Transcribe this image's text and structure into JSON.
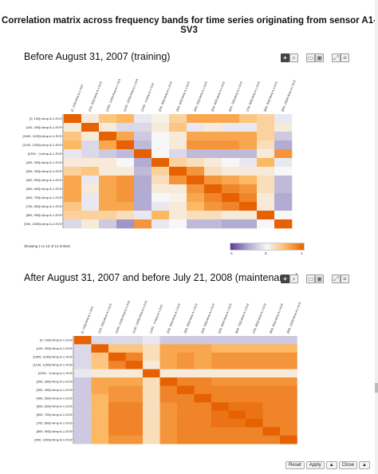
{
  "page": {
    "title": "Correlation matrix across frequency bands for time series originating from sensor A1- SV3"
  },
  "panels": [
    {
      "title": "Before August 31, 2007 (training)",
      "showing": "Showing 1 to 13 of 13 entries"
    },
    {
      "title": "After August 31, 2007 and before July 21, 2008 (maintenance)",
      "showing": ""
    }
  ],
  "toolbar": {
    "add_icon": "plus-icon",
    "zoom_icon": "zoom-icon",
    "icons": [
      "pan-icon",
      "select-icon",
      "fullscreen-icon",
      "menu-icon"
    ]
  },
  "legend": {
    "min_label": "-1",
    "mid_label": "0",
    "max_label": "1",
    "colors": [
      "#5e3c99",
      "#b2abd2",
      "#f7f7f7",
      "#fdb863",
      "#e66101"
    ]
  },
  "footer": {
    "reset": "Reset",
    "apply": "Apply",
    "close": "Close",
    "arrow": "▲"
  },
  "chart_data": [
    {
      "type": "heatmap",
      "title": "Before August 31, 2007 (training)",
      "row_labels": [
        "[0, 100]<Amp A-1-SV3",
        "[100, 200]<Amp A-1-SV3",
        "[1000, 1100]<Amp A-1-SV3",
        "[1100, 1200]<Amp A-1-SV3",
        "[1200, ~]<Amp A-1-SV3",
        "[200, 300]<Amp A-1-SV3",
        "[300, 400]<Amp A-1-SV3",
        "[400, 500]<Amp A-1-SV3",
        "[500, 600]<Amp A-1-SV3",
        "[600, 700]<Amp A-1-SV3",
        "[700, 800]<Amp A-1-SV3",
        "[800, 900]<Amp A-1-SV3",
        "[900, 1000]<Amp A-1-SV3"
      ],
      "col_labels": [
        "[0, 100]<Amp A-1-SV3",
        "[100, 200]<Amp A-1-SV3",
        "[1000, 1100]<Amp A-1-SV3",
        "[1100, 1200]<Amp A-1-SV3",
        "[1200, ~]<Amp A-1-SV3",
        "[200, 300]<Amp A-1-SV3",
        "[300, 400]<Amp A-1-SV3",
        "[400, 500]<Amp A-1-SV3",
        "[500, 600]<Amp A-1-SV3",
        "[600, 700]<Amp A-1-SV3",
        "[700, 800]<Amp A-1-SV3",
        "[800, 900]<Amp A-1-SV3",
        "[900, 1000]<Amp A-1-SV3"
      ],
      "zlim": [
        -1,
        1
      ],
      "values": [
        [
          1.0,
          0.1,
          0.4,
          0.5,
          -0.1,
          0.05,
          0.3,
          0.6,
          0.6,
          0.6,
          0.4,
          0.3,
          -0.1
        ],
        [
          0.1,
          1.0,
          0.1,
          -0.2,
          -0.2,
          0.1,
          0.4,
          -0.1,
          0.1,
          -0.1,
          -0.1,
          0.3,
          0.1
        ],
        [
          0.4,
          0.1,
          1.0,
          0.6,
          -0.3,
          0.0,
          0.1,
          0.6,
          0.6,
          0.6,
          0.6,
          0.3,
          -0.3
        ],
        [
          0.5,
          -0.2,
          0.6,
          1.0,
          -0.4,
          0.0,
          0.1,
          0.7,
          0.7,
          0.7,
          0.6,
          0.2,
          -0.5
        ],
        [
          -0.1,
          -0.2,
          -0.3,
          -0.4,
          1.0,
          0.0,
          -0.2,
          -0.4,
          -0.4,
          -0.4,
          -0.4,
          0.1,
          0.7
        ],
        [
          0.1,
          0.1,
          0.1,
          0.0,
          -0.5,
          1.0,
          0.3,
          0.2,
          0.1,
          0.0,
          -0.1,
          0.5,
          -0.1
        ],
        [
          0.3,
          0.4,
          0.1,
          0.1,
          -0.4,
          0.3,
          1.0,
          0.7,
          0.2,
          0.1,
          0.1,
          0.1,
          0.0
        ],
        [
          0.6,
          -0.1,
          0.6,
          0.7,
          -0.5,
          0.2,
          0.7,
          1.0,
          0.7,
          0.6,
          0.5,
          0.2,
          -0.4
        ],
        [
          0.6,
          0.1,
          0.6,
          0.7,
          -0.5,
          0.1,
          0.1,
          0.7,
          1.0,
          0.8,
          0.7,
          0.2,
          -0.4
        ],
        [
          0.6,
          -0.1,
          0.6,
          0.7,
          -0.5,
          0.0,
          0.05,
          0.6,
          0.8,
          1.0,
          0.8,
          0.1,
          -0.5
        ],
        [
          0.4,
          -0.1,
          0.6,
          0.6,
          -0.5,
          -0.1,
          0.1,
          0.5,
          0.7,
          0.8,
          1.0,
          0.1,
          -0.5
        ],
        [
          0.3,
          0.3,
          0.3,
          0.2,
          -0.1,
          0.5,
          0.1,
          0.2,
          0.2,
          0.1,
          0.1,
          1.0,
          0.0
        ],
        [
          -0.2,
          0.1,
          -0.3,
          -0.6,
          0.7,
          -0.1,
          0.0,
          -0.4,
          -0.4,
          -0.5,
          -0.5,
          0.0,
          1.0
        ]
      ]
    },
    {
      "type": "heatmap",
      "title": "After August 31, 2007 and before July 21, 2008 (maintenance)",
      "row_labels": [
        "[0, 100]<Amp A-1-SV3",
        "[100, 200]<Amp A-1-SV3",
        "[1000, 1100]<Amp A-1-SV3",
        "[1100, 1200]<Amp A-1-SV3",
        "[1200, ~]<Amp A-1-SV3",
        "[200, 300]<Amp A-1-SV3",
        "[300, 400]<Amp A-1-SV3",
        "[400, 500]<Amp A-1-SV3",
        "[500, 600]<Amp A-1-SV3",
        "[600, 700]<Amp A-1-SV3",
        "[700, 800]<Amp A-1-SV3",
        "[800, 900]<Amp A-1-SV3",
        "[900, 1000]<Amp A-1-SV3"
      ],
      "col_labels": [
        "[0, 100]<Amp A-1-SV3",
        "[100, 200]<Amp A-1-SV3",
        "[1000, 1100]<Amp A-1-SV3",
        "[1100, 1200]<Amp A-1-SV3",
        "[1200, ~]<Amp A-1-SV3",
        "[200, 300]<Amp A-1-SV3",
        "[300, 400]<Amp A-1-SV3",
        "[400, 500]<Amp A-1-SV3",
        "[500, 600]<Amp A-1-SV3",
        "[600, 700]<Amp A-1-SV3",
        "[700, 800]<Amp A-1-SV3",
        "[800, 900]<Amp A-1-SV3",
        "[900, 1000]<Amp A-1-SV3"
      ],
      "zlim": [
        -1,
        1
      ],
      "values": [
        [
          1.0,
          -0.2,
          -0.2,
          -0.2,
          -0.1,
          -0.3,
          -0.3,
          -0.3,
          -0.3,
          -0.3,
          -0.3,
          -0.3,
          -0.3
        ],
        [
          -0.2,
          1.0,
          0.4,
          0.4,
          0.2,
          0.6,
          0.6,
          0.6,
          0.5,
          0.5,
          0.5,
          0.5,
          0.5
        ],
        [
          -0.2,
          0.4,
          1.0,
          0.8,
          0.2,
          0.6,
          0.7,
          0.6,
          0.7,
          0.7,
          0.7,
          0.7,
          0.7
        ],
        [
          -0.2,
          0.4,
          0.8,
          1.0,
          0.1,
          0.6,
          0.7,
          0.6,
          0.7,
          0.7,
          0.7,
          0.7,
          0.7
        ],
        [
          -0.1,
          0.1,
          0.1,
          0.1,
          1.0,
          0.1,
          0.1,
          0.1,
          0.1,
          0.1,
          0.1,
          0.1,
          0.1
        ],
        [
          -0.3,
          0.6,
          0.6,
          0.6,
          0.2,
          1.0,
          0.8,
          0.8,
          0.7,
          0.7,
          0.7,
          0.7,
          0.7
        ],
        [
          -0.3,
          0.6,
          0.7,
          0.7,
          0.2,
          0.8,
          1.0,
          0.8,
          0.8,
          0.8,
          0.8,
          0.8,
          0.8
        ],
        [
          -0.3,
          0.5,
          0.7,
          0.7,
          0.2,
          0.8,
          0.8,
          1.0,
          0.8,
          0.8,
          0.8,
          0.8,
          0.8
        ],
        [
          -0.3,
          0.5,
          0.8,
          0.8,
          0.2,
          0.7,
          0.8,
          0.8,
          1.0,
          0.9,
          0.9,
          0.8,
          0.8
        ],
        [
          -0.3,
          0.5,
          0.8,
          0.8,
          0.2,
          0.7,
          0.8,
          0.8,
          0.9,
          1.0,
          0.9,
          0.8,
          0.8
        ],
        [
          -0.3,
          0.5,
          0.8,
          0.8,
          0.2,
          0.7,
          0.8,
          0.8,
          0.9,
          0.9,
          1.0,
          0.8,
          0.8
        ],
        [
          -0.3,
          0.5,
          0.8,
          0.8,
          0.2,
          0.7,
          0.8,
          0.8,
          0.8,
          0.8,
          0.8,
          1.0,
          0.8
        ],
        [
          -0.3,
          0.5,
          0.7,
          0.7,
          0.2,
          0.7,
          0.8,
          0.8,
          0.8,
          0.8,
          0.8,
          0.8,
          1.0
        ]
      ]
    }
  ]
}
